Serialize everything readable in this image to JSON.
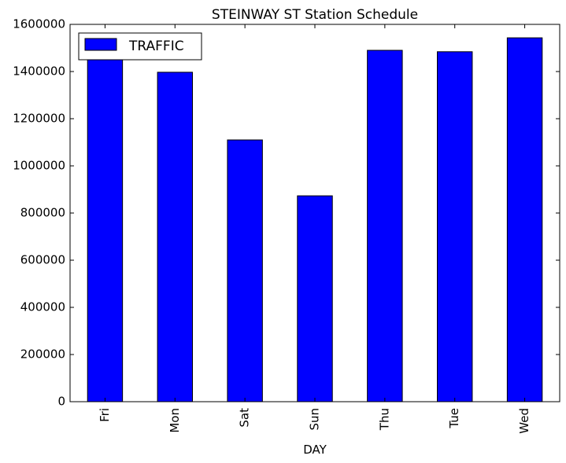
{
  "chart_data": {
    "type": "bar",
    "title": "STEINWAY ST Station Schedule",
    "xlabel": "DAY",
    "ylabel": "",
    "categories": [
      "Fri",
      "Mon",
      "Sat",
      "Sun",
      "Thu",
      "Tue",
      "Wed"
    ],
    "series": [
      {
        "name": "TRAFFIC",
        "color": "#0000ff",
        "values": [
          1460000,
          1397000,
          1110000,
          873000,
          1490000,
          1484000,
          1543000
        ]
      }
    ],
    "ylim": [
      0,
      1600000
    ],
    "yticks": [
      0,
      200000,
      400000,
      600000,
      800000,
      1000000,
      1200000,
      1400000,
      1600000
    ],
    "ytick_labels": [
      "0",
      "200000",
      "400000",
      "600000",
      "800000",
      "1000000",
      "1200000",
      "1400000",
      "1600000"
    ],
    "grid": false,
    "legend_position": "top-left"
  }
}
